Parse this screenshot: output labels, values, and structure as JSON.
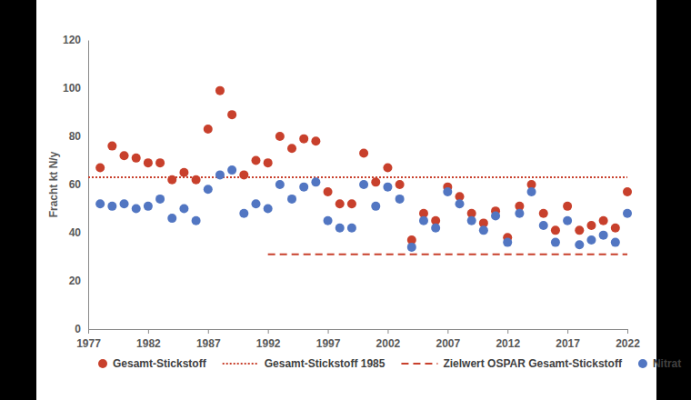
{
  "chart_data": {
    "type": "scatter",
    "y_label": "Fracht kt N/y",
    "x": [
      1978,
      1979,
      1980,
      1981,
      1982,
      1983,
      1984,
      1985,
      1986,
      1987,
      1988,
      1989,
      1990,
      1991,
      1992,
      1993,
      1994,
      1995,
      1996,
      1997,
      1998,
      1999,
      2000,
      2001,
      2002,
      2003,
      2004,
      2005,
      2006,
      2007,
      2008,
      2009,
      2010,
      2011,
      2012,
      2013,
      2014,
      2015,
      2016,
      2017,
      2018,
      2019,
      2020,
      2021,
      2022
    ],
    "xlim": [
      1977,
      2022
    ],
    "xticks": [
      1977,
      1982,
      1987,
      1992,
      1997,
      2002,
      2007,
      2012,
      2017,
      2022
    ],
    "ylim": [
      0,
      120
    ],
    "yticks": [
      0,
      20,
      40,
      60,
      80,
      100,
      120
    ],
    "grid": false,
    "legend": "bottom",
    "series": [
      {
        "name": "Gesamt-Stickstoff",
        "type": "scatter",
        "marker": "circle",
        "color": "#c8402c",
        "values": [
          67,
          76,
          72,
          71,
          69,
          69,
          62,
          65,
          62,
          83,
          99,
          89,
          64,
          70,
          69,
          80,
          75,
          79,
          78,
          57,
          52,
          52,
          73,
          61,
          67,
          60,
          37,
          48,
          45,
          59,
          55,
          48,
          44,
          49,
          38,
          51,
          60,
          48,
          41,
          51,
          41,
          43,
          45,
          42,
          57
        ]
      },
      {
        "name": "Gesamt-Stickstoff 1985",
        "type": "line",
        "line_style": "dotted",
        "color": "#c8402c",
        "x": [
          1977,
          2022
        ],
        "values": [
          63,
          63
        ]
      },
      {
        "name": "Zielwert OSPAR Gesamt-Stickstoff",
        "type": "line",
        "line_style": "dashed",
        "color": "#c8402c",
        "x": [
          1992,
          2022
        ],
        "values": [
          31,
          31
        ]
      },
      {
        "name": "Nitrat",
        "type": "scatter",
        "marker": "circle",
        "color": "#5276c2",
        "values": [
          52,
          51,
          52,
          50,
          51,
          54,
          46,
          50,
          45,
          58,
          64,
          66,
          48,
          52,
          50,
          60,
          54,
          59,
          61,
          45,
          42,
          42,
          60,
          51,
          59,
          54,
          34,
          45,
          42,
          57,
          52,
          45,
          41,
          47,
          36,
          48,
          57,
          43,
          36,
          45,
          35,
          37,
          39,
          36,
          48
        ]
      }
    ]
  }
}
